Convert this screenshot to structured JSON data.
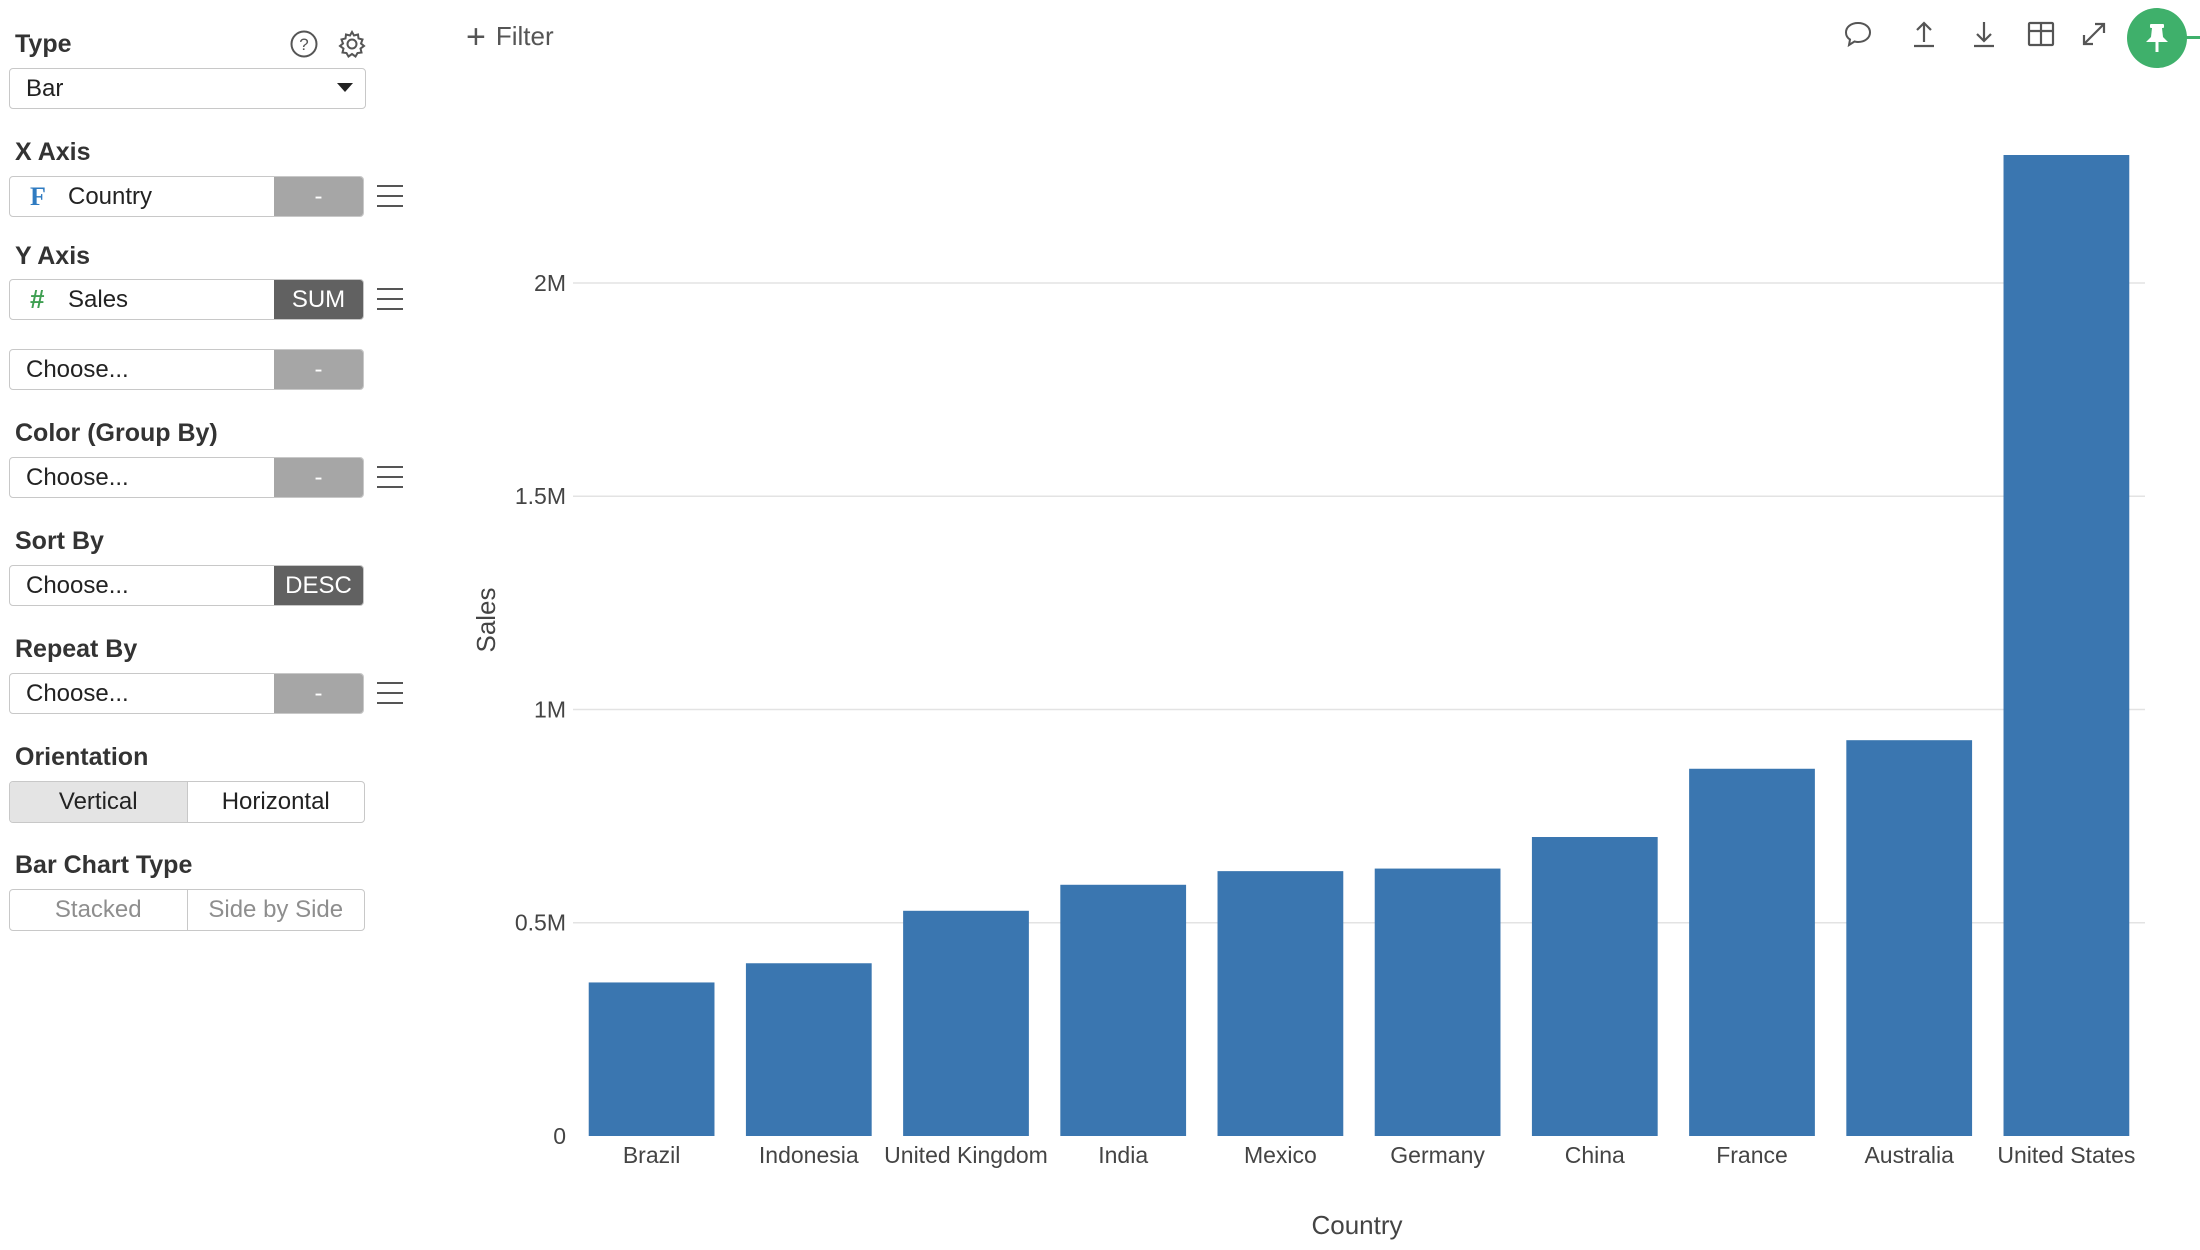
{
  "panel": {
    "type": {
      "label": "Type",
      "value": "Bar"
    },
    "x_axis": {
      "label": "X Axis",
      "field": "Country",
      "field_icon": "F",
      "agg": "-"
    },
    "y_axis": {
      "label": "Y Axis",
      "field": "Sales",
      "field_icon": "#",
      "agg": "SUM",
      "extra_placeholder": "Choose...",
      "extra_agg": "-"
    },
    "color": {
      "label": "Color (Group By)",
      "placeholder": "Choose...",
      "agg": "-"
    },
    "sort": {
      "label": "Sort By",
      "placeholder": "Choose...",
      "order": "DESC"
    },
    "repeat": {
      "label": "Repeat By",
      "placeholder": "Choose...",
      "agg": "-"
    },
    "orientation": {
      "label": "Orientation",
      "options": [
        "Vertical",
        "Horizontal"
      ],
      "selected": "Vertical"
    },
    "bar_type": {
      "label": "Bar Chart Type",
      "options": [
        "Stacked",
        "Side by Side"
      ]
    }
  },
  "toolbar": {
    "filter_label": "Filter",
    "icons": [
      "comment-icon",
      "upload-icon",
      "download-icon",
      "table-icon",
      "expand-icon",
      "pin-icon"
    ],
    "pin_color": "#3fb06b"
  },
  "chart_data": {
    "type": "bar",
    "categories": [
      "Brazil",
      "Indonesia",
      "United Kingdom",
      "India",
      "Mexico",
      "Germany",
      "China",
      "France",
      "Australia",
      "United States"
    ],
    "values": [
      360000,
      405000,
      528000,
      589000,
      621000,
      627000,
      701000,
      861000,
      928000,
      2300000
    ],
    "xlabel": "Country",
    "ylabel": "Sales",
    "ylim": [
      0,
      2300000
    ],
    "yticks": [
      0,
      500000,
      1000000,
      1500000,
      2000000
    ],
    "ytick_labels": [
      "0",
      "0.5M",
      "1M",
      "1.5M",
      "2M"
    ],
    "bar_color": "#3a76b0",
    "grid": true
  }
}
